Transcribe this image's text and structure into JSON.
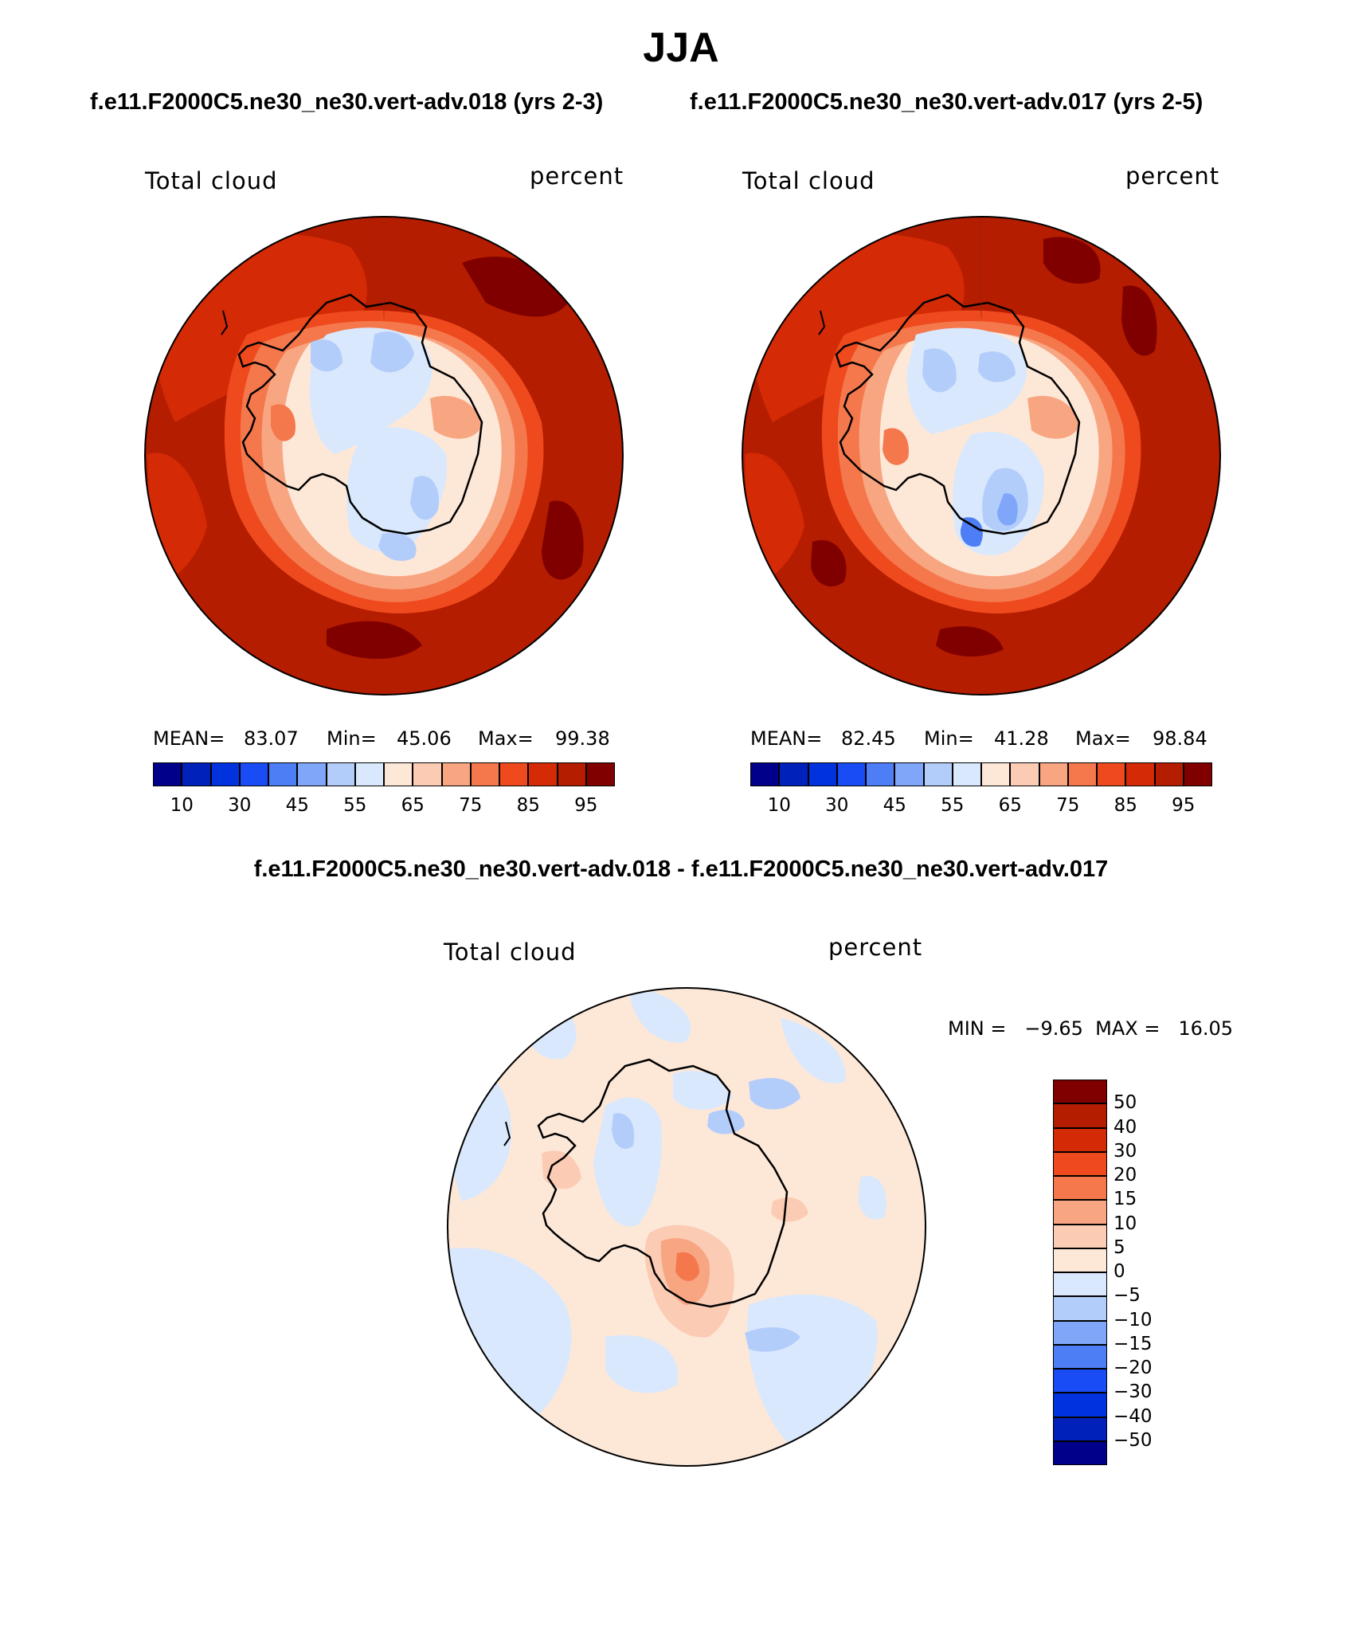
{
  "figure": {
    "season": "JJA",
    "left_title": "f.e11.F2000C5.ne30_ne30.vert-adv.018 (yrs 2-3)",
    "right_title": "f.e11.F2000C5.ne30_ne30.vert-adv.017 (yrs 2-5)",
    "diff_title": "f.e11.F2000C5.ne30_ne30.vert-adv.018 - f.e11.F2000C5.ne30_ne30.vert-adv.017"
  },
  "panels": [
    {
      "variable": "Total cloud",
      "units": "percent",
      "mean_label": "MEAN=",
      "mean": "83.07",
      "min_label": "Min=",
      "min": "45.06",
      "max_label": "Max=",
      "max": "99.38"
    },
    {
      "variable": "Total cloud",
      "units": "percent",
      "mean_label": "MEAN=",
      "mean": "82.45",
      "min_label": "Min=",
      "min": "41.28",
      "max_label": "Max=",
      "max": "98.84"
    }
  ],
  "diff_panel": {
    "variable": "Total cloud",
    "units": "percent",
    "minmax_text": "MIN =   −9.65  MAX =   16.05"
  },
  "colorbar_abs": {
    "colors": [
      "#00008b",
      "#0022bb",
      "#0033dd",
      "#1a4cf5",
      "#4d7ef5",
      "#7fa6f8",
      "#b3cdfb",
      "#d9e8fd",
      "#fde8d8",
      "#fbcbb4",
      "#f8a582",
      "#f5784d",
      "#ee4a1e",
      "#d42a05",
      "#b51d00",
      "#800000"
    ],
    "tick_labels": [
      "10",
      "30",
      "45",
      "55",
      "65",
      "75",
      "85",
      "95"
    ]
  },
  "colorbar_diff": {
    "colors": [
      "#800000",
      "#b51d00",
      "#d42a05",
      "#ee4a1e",
      "#f5784d",
      "#f8a582",
      "#fbcbb4",
      "#fde8d8",
      "#d9e8fd",
      "#b3cdfb",
      "#7fa6f8",
      "#4d7ef5",
      "#1a4cf5",
      "#0033dd",
      "#0022bb",
      "#00008b"
    ],
    "tick_labels": [
      "50",
      "40",
      "30",
      "20",
      "15",
      "10",
      "5",
      "0",
      "−5",
      "−10",
      "−15",
      "−20",
      "−30",
      "−40",
      "−50"
    ]
  },
  "map_colors": {
    "ocean_high": "#b51d00",
    "ocean_peak": "#800000",
    "ocean_mid": "#d42a05",
    "coast_orange": "#ee4a1e",
    "coast_light": "#f5784d",
    "salmon": "#f8a582",
    "peach": "#fbcbb4",
    "cream": "#fde8d8",
    "light_blue": "#d9e8fd",
    "blue": "#b3cdfb",
    "mid_blue": "#7fa6f8",
    "deep_blue": "#4d7ef5"
  }
}
